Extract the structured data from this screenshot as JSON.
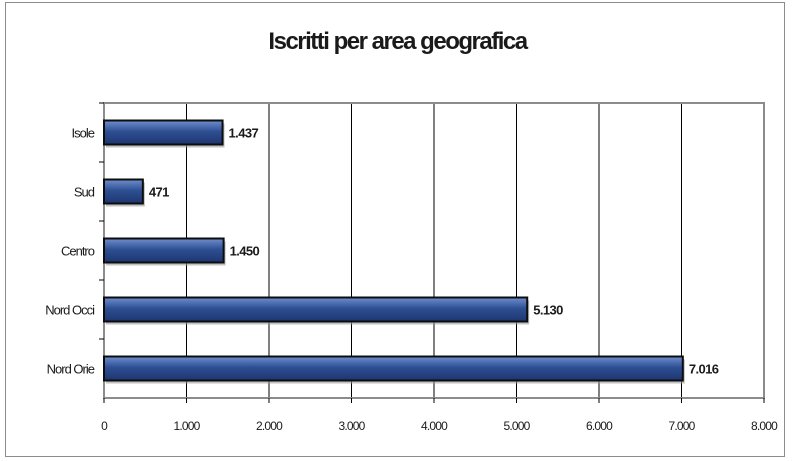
{
  "chart_data": {
    "type": "bar",
    "orientation": "horizontal",
    "title": "Iscritti per area geografica",
    "categories": [
      "Isole",
      "Sud",
      "Centro",
      "Nord Occi",
      "Nord Orie"
    ],
    "values": [
      1437,
      471,
      1450,
      5130,
      7016
    ],
    "value_labels": [
      "1.437",
      "471",
      "1.450",
      "5.130",
      "7.016"
    ],
    "xlim": [
      0,
      8000
    ],
    "xticks": [
      0,
      1000,
      2000,
      3000,
      4000,
      5000,
      6000,
      7000,
      8000
    ],
    "xtick_labels": [
      "0",
      "1.000",
      "2.000",
      "3.000",
      "4.000",
      "5.000",
      "6.000",
      "7.000",
      "8.000"
    ],
    "xlabel": "",
    "ylabel": "",
    "grid": "vertical",
    "legend": "none",
    "bar_color": "#2e4f92",
    "bar_highlight": "#6f8fd0"
  }
}
